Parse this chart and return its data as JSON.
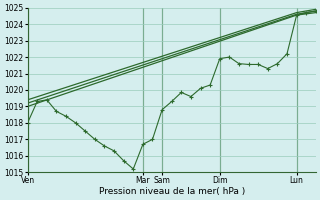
{
  "xlabel": "Pression niveau de la mer( hPa )",
  "ylim": [
    1015,
    1025
  ],
  "yticks": [
    1015,
    1016,
    1017,
    1018,
    1019,
    1020,
    1021,
    1022,
    1023,
    1024,
    1025
  ],
  "background_color": "#d5eeee",
  "grid_color": "#99ccbb",
  "line_color": "#2d6a2d",
  "day_labels": [
    "Ven",
    "Mar",
    "Sam",
    "Dim",
    "Lun"
  ],
  "day_positions": [
    0,
    12,
    14,
    20,
    28
  ],
  "xlim": [
    0,
    30
  ],
  "line1_x": [
    0,
    1,
    2,
    3,
    4,
    5,
    6,
    7,
    8,
    9,
    10,
    11,
    12,
    13,
    14,
    15,
    16,
    17,
    18,
    19,
    20,
    21,
    22,
    23,
    24,
    25,
    26,
    27,
    28,
    29,
    30
  ],
  "line1_y": [
    1018.0,
    1019.3,
    1019.4,
    1018.7,
    1018.4,
    1018.0,
    1017.5,
    1017.0,
    1016.6,
    1016.3,
    1015.7,
    1015.2,
    1016.7,
    1017.0,
    1018.8,
    1019.3,
    1019.85,
    1019.6,
    1020.1,
    1020.3,
    1021.9,
    1022.0,
    1021.6,
    1021.55,
    1021.55,
    1021.3,
    1021.6,
    1022.2,
    1024.55,
    1024.7,
    1024.8
  ],
  "line2_x": [
    0,
    28,
    30
  ],
  "line2_y": [
    1019.0,
    1024.55,
    1024.7
  ],
  "line3_x": [
    0,
    28,
    30
  ],
  "line3_y": [
    1019.2,
    1024.6,
    1024.8
  ],
  "line4_x": [
    0,
    28,
    30
  ],
  "line4_y": [
    1019.4,
    1024.7,
    1024.9
  ],
  "sep_line_color": "#336633"
}
